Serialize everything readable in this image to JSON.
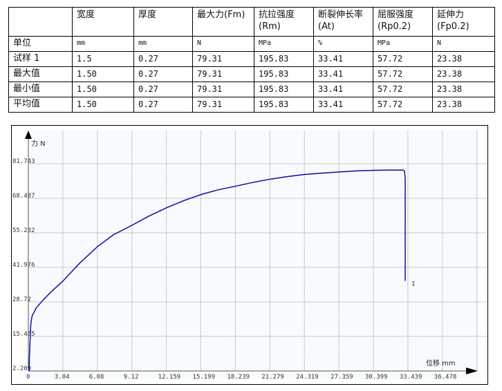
{
  "table": {
    "headers": [
      {
        "line1": "",
        "line2": ""
      },
      {
        "line1": "宽度",
        "line2": ""
      },
      {
        "line1": "厚度",
        "line2": ""
      },
      {
        "line1": "最大力(Fm)",
        "line2": ""
      },
      {
        "line1": "抗拉强度",
        "line2": "(Rm)"
      },
      {
        "line1": "断裂伸长率",
        "line2": "(At)"
      },
      {
        "line1": "屈服强度",
        "line2": "(Rp0.2)"
      },
      {
        "line1": "延伸力",
        "line2": "(Fp0.2)"
      }
    ],
    "rows": [
      [
        "单位",
        "mm",
        "mm",
        "N",
        "MPa",
        "%",
        "MPa",
        "N"
      ],
      [
        "试样 1",
        "1.5",
        "0.27",
        "79.31",
        "195.83",
        "33.41",
        "57.72",
        "23.38"
      ],
      [
        "最大值",
        "1.50",
        "0.27",
        "79.31",
        "195.83",
        "33.41",
        "57.72",
        "23.38"
      ],
      [
        "最小值",
        "1.50",
        "0.27",
        "79.31",
        "195.83",
        "33.41",
        "57.72",
        "23.38"
      ],
      [
        "平均值",
        "1.50",
        "0.27",
        "79.31",
        "195.83",
        "33.41",
        "57.72",
        "23.38"
      ]
    ]
  },
  "chart_data": {
    "type": "line",
    "ylabel": "力 N",
    "xlabel": "位移 mm",
    "xlim": [
      0,
      39.5
    ],
    "ylim": [
      2.209,
      89
    ],
    "x_ticks": [
      "0",
      "3.04",
      "6.08",
      "9.12",
      "12.159",
      "15.199",
      "18.239",
      "21.279",
      "24.319",
      "27.359",
      "30.399",
      "33.439",
      "36.478"
    ],
    "y_ticks": [
      "2.209",
      "15.465",
      "28.72",
      "41.976",
      "55.232",
      "68.487",
      "81.743"
    ],
    "grid": true,
    "line_color": "#1a1aa8",
    "series": [
      {
        "name": "1",
        "x": [
          0.06,
          0.1,
          0.15,
          0.2,
          0.25,
          0.34,
          0.7,
          1.36,
          2.0,
          3.04,
          4.5,
          6.08,
          7.5,
          9.12,
          10.6,
          12.159,
          13.7,
          15.199,
          16.7,
          18.239,
          19.8,
          21.279,
          22.8,
          24.319,
          25.8,
          27.359,
          28.9,
          30.399,
          31.9,
          33.0,
          33.15,
          33.2,
          33.2,
          33.2
        ],
        "y": [
          2.2,
          8,
          14,
          19,
          21.5,
          23.4,
          26.5,
          29.7,
          32.5,
          36.7,
          43.5,
          49.9,
          54.5,
          58.1,
          61.6,
          64.8,
          67.6,
          69.9,
          71.7,
          73.1,
          74.6,
          75.8,
          76.8,
          77.6,
          78.1,
          78.6,
          79.0,
          79.2,
          79.3,
          79.31,
          78.9,
          76,
          50,
          36.8
        ]
      }
    ]
  }
}
